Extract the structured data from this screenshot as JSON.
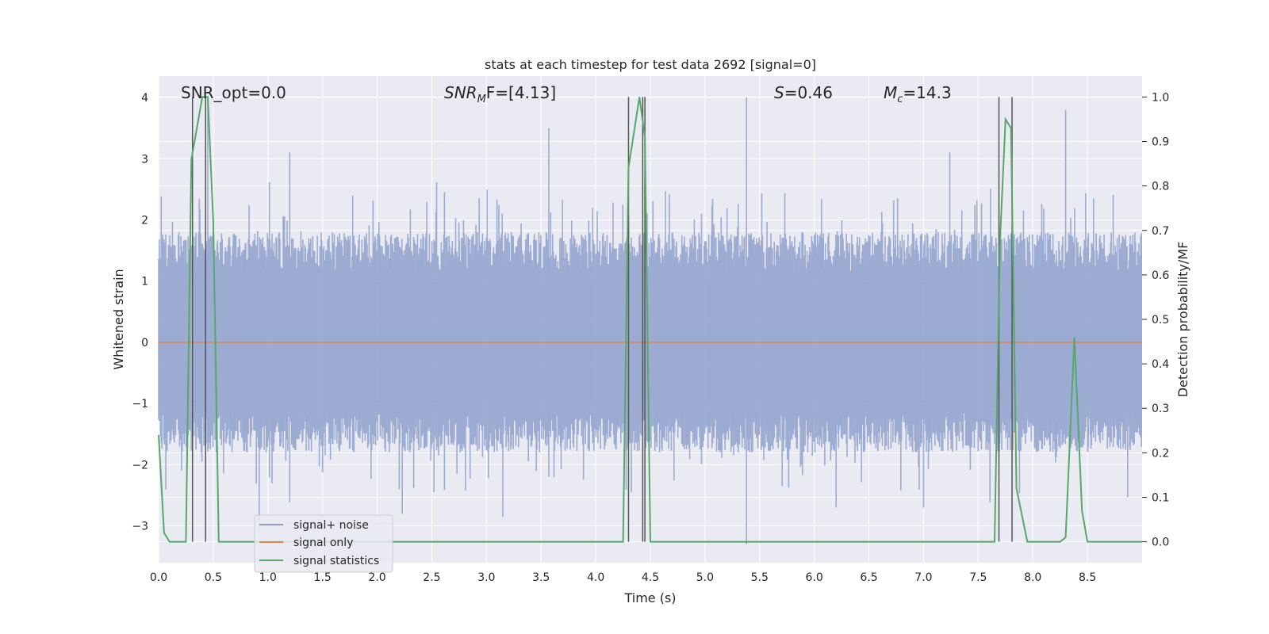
{
  "chart_data": {
    "type": "line",
    "title": "stats at each timestep for test data 2692 [signal=0]",
    "xlabel": "Time (s)",
    "ylabel": "Whitened strain",
    "ylabel_right": "Detection probability/MF",
    "xlim": [
      0,
      9
    ],
    "ylim": [
      -3.6,
      4.35
    ],
    "ylim_right": [
      -0.047,
      1.047
    ],
    "xticks": [
      0.0,
      0.5,
      1.0,
      1.5,
      2.0,
      2.5,
      3.0,
      3.5,
      4.0,
      4.5,
      5.0,
      5.5,
      6.0,
      6.5,
      7.0,
      7.5,
      8.0,
      8.5
    ],
    "xtick_labels": [
      "0.0",
      "0.5",
      "1.0",
      "1.5",
      "2.0",
      "2.5",
      "3.0",
      "3.5",
      "4.0",
      "4.5",
      "5.0",
      "5.5",
      "6.0",
      "6.5",
      "7.0",
      "7.5",
      "8.0",
      "8.5"
    ],
    "yticks": [
      -3,
      -2,
      -1,
      0,
      1,
      2,
      3,
      4
    ],
    "ytick_labels": [
      "−3",
      "−2",
      "−1",
      "0",
      "1",
      "2",
      "3",
      "4"
    ],
    "yticks_right": [
      0.0,
      0.1,
      0.2,
      0.3,
      0.4,
      0.5,
      0.6,
      0.7,
      0.8,
      0.9,
      1.0
    ],
    "ytick_labels_right": [
      "0.0",
      "0.1",
      "0.2",
      "0.3",
      "0.4",
      "0.5",
      "0.6",
      "0.7",
      "0.8",
      "0.9",
      "1.0"
    ],
    "grid": true,
    "legend_position": "bottom-left",
    "annotations": {
      "snr_opt": "SNR_opt=0.0",
      "snr_mf_prefix": "SNR",
      "snr_mf_sub": "M",
      "snr_mf_suffix": "F=[4.13]",
      "s_prefix": "S",
      "s_suffix": "=0.46",
      "mc_prefix": "M",
      "mc_sub": "c",
      "mc_suffix": "=14.3"
    },
    "vertical_lines": [
      0.31,
      0.43,
      4.3,
      4.43,
      4.45,
      7.69,
      7.81
    ],
    "series": [
      {
        "name": "signal+ noise",
        "color": "#8da0cb",
        "envelope": {
          "core": 1.15,
          "typical": 1.8,
          "peak_max": 4.0,
          "trough_min": -3.3
        },
        "peaks": [
          [
            0.45,
            4.0
          ],
          [
            3.57,
            3.5
          ],
          [
            5.38,
            4.0
          ],
          [
            8.3,
            3.8
          ],
          [
            1.2,
            3.1
          ],
          [
            7.24,
            3.1
          ]
        ],
        "troughs": [
          [
            0.92,
            -3.1
          ],
          [
            2.23,
            -2.8
          ],
          [
            3.15,
            -2.85
          ],
          [
            5.38,
            -3.3
          ],
          [
            6.2,
            -2.7
          ],
          [
            7.0,
            -2.7
          ]
        ]
      },
      {
        "name": "signal only",
        "color": "#dd8452",
        "x": [
          0,
          9
        ],
        "y": [
          0,
          0
        ]
      },
      {
        "name": "signal statistics",
        "color": "#55a868",
        "axis": "right",
        "x": [
          0.0,
          0.05,
          0.1,
          0.25,
          0.3,
          0.4,
          0.45,
          0.5,
          0.55,
          0.6,
          0.8,
          1.0,
          2.0,
          3.0,
          4.0,
          4.25,
          4.3,
          4.4,
          4.45,
          4.5,
          4.6,
          5.0,
          6.0,
          6.9,
          7.0,
          7.5,
          7.6,
          7.65,
          7.7,
          7.75,
          7.8,
          7.85,
          7.95,
          8.0,
          8.25,
          8.3,
          8.38,
          8.45,
          8.5,
          8.6,
          9.0
        ],
        "y": [
          0.24,
          0.02,
          0.0,
          0.0,
          0.86,
          1.0,
          1.0,
          0.72,
          0.0,
          0.0,
          0.0,
          0.0,
          0.0,
          0.0,
          0.0,
          0.0,
          0.84,
          1.0,
          0.91,
          0.0,
          0.0,
          0.0,
          0.0,
          0.0,
          0.0,
          0.0,
          0.0,
          0.0,
          0.68,
          0.95,
          0.93,
          0.12,
          0.0,
          0.0,
          0.0,
          0.01,
          0.46,
          0.07,
          0.0,
          0.0,
          0.0
        ]
      }
    ]
  }
}
